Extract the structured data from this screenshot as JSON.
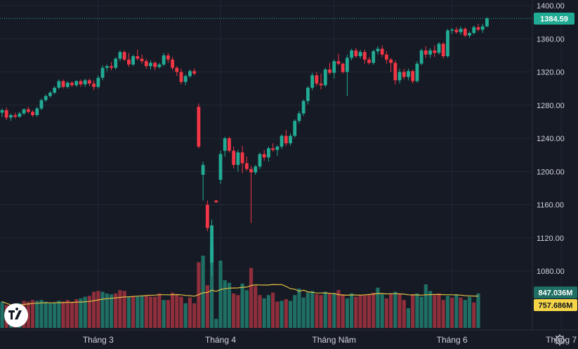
{
  "chart_data": {
    "type": "candlestick",
    "title": "",
    "xlabel": "",
    "ylabel": "",
    "ylim": [
      1050,
      1410
    ],
    "yticks": [
      "1400.00",
      "1360.00",
      "1320.00",
      "1280.00",
      "1240.00",
      "1200.00",
      "1160.00",
      "1120.00",
      "1080.00"
    ],
    "xticks": [
      {
        "label": "Tháng 3",
        "index": 22
      },
      {
        "label": "Tháng 4",
        "index": 50
      },
      {
        "label": "Tháng Năm",
        "index": 76
      },
      {
        "label": "Tháng 6",
        "index": 103
      },
      {
        "label": "Tháng 7",
        "index": 128
      }
    ],
    "last_price": "1384.59",
    "volume_tag": "847.036M",
    "volume_ma_tag": "757.686M",
    "colors": {
      "up": "#22ab94",
      "down": "#f23645",
      "vol_up": "#1f6f64",
      "vol_down": "#8e2f3b",
      "ma": "#e3c043",
      "price_line": "#22ab94"
    },
    "candles": [
      [
        1271,
        1276,
        1266,
        1274
      ],
      [
        1274,
        1277,
        1262,
        1265
      ],
      [
        1265,
        1270,
        1261,
        1268
      ],
      [
        1268,
        1271,
        1264,
        1266
      ],
      [
        1266,
        1272,
        1265,
        1270
      ],
      [
        1270,
        1276,
        1268,
        1275
      ],
      [
        1275,
        1278,
        1270,
        1272
      ],
      [
        1272,
        1274,
        1266,
        1268
      ],
      [
        1268,
        1278,
        1266,
        1276
      ],
      [
        1276,
        1288,
        1274,
        1286
      ],
      [
        1286,
        1293,
        1284,
        1291
      ],
      [
        1291,
        1297,
        1289,
        1295
      ],
      [
        1295,
        1303,
        1293,
        1301
      ],
      [
        1301,
        1311,
        1299,
        1309
      ],
      [
        1309,
        1311,
        1300,
        1302
      ],
      [
        1302,
        1309,
        1300,
        1307
      ],
      [
        1307,
        1309,
        1302,
        1304
      ],
      [
        1304,
        1310,
        1302,
        1309
      ],
      [
        1309,
        1311,
        1302,
        1305
      ],
      [
        1305,
        1312,
        1302,
        1310
      ],
      [
        1310,
        1312,
        1303,
        1306
      ],
      [
        1306,
        1310,
        1298,
        1302
      ],
      [
        1302,
        1316,
        1300,
        1313
      ],
      [
        1313,
        1328,
        1310,
        1325
      ],
      [
        1325,
        1329,
        1321,
        1327
      ],
      [
        1327,
        1332,
        1322,
        1325
      ],
      [
        1325,
        1338,
        1323,
        1336
      ],
      [
        1336,
        1346,
        1333,
        1344
      ],
      [
        1344,
        1346,
        1333,
        1335
      ],
      [
        1335,
        1343,
        1326,
        1329
      ],
      [
        1329,
        1341,
        1327,
        1339
      ],
      [
        1339,
        1347,
        1334,
        1336
      ],
      [
        1336,
        1341,
        1330,
        1333
      ],
      [
        1333,
        1336,
        1324,
        1327
      ],
      [
        1327,
        1334,
        1323,
        1331
      ],
      [
        1331,
        1333,
        1322,
        1326
      ],
      [
        1326,
        1331,
        1324,
        1329
      ],
      [
        1329,
        1343,
        1327,
        1340
      ],
      [
        1340,
        1343,
        1331,
        1335
      ],
      [
        1335,
        1338,
        1322,
        1325
      ],
      [
        1325,
        1327,
        1315,
        1320
      ],
      [
        1320,
        1324,
        1305,
        1308
      ],
      [
        1308,
        1317,
        1304,
        1315
      ],
      [
        1315,
        1323,
        1313,
        1321
      ],
      [
        1321,
        1324,
        1316,
        1318
      ],
      [
        1278,
        1282,
        1228,
        1230
      ],
      [
        1196,
        1212,
        1165,
        1208
      ],
      [
        1160,
        1165,
        1128,
        1132
      ],
      [
        1090,
        1142,
        1074,
        1135
      ],
      [
        1165,
        1166,
        1162,
        1163
      ],
      [
        1190,
        1225,
        1185,
        1221
      ],
      [
        1225,
        1242,
        1218,
        1240
      ],
      [
        1240,
        1242,
        1223,
        1225
      ],
      [
        1225,
        1230,
        1204,
        1208
      ],
      [
        1208,
        1226,
        1200,
        1223
      ],
      [
        1223,
        1231,
        1198,
        1210
      ],
      [
        1210,
        1218,
        1201,
        1203
      ],
      [
        1203,
        1207,
        1138,
        1199
      ],
      [
        1199,
        1208,
        1196,
        1206
      ],
      [
        1206,
        1223,
        1203,
        1221
      ],
      [
        1221,
        1226,
        1213,
        1217
      ],
      [
        1217,
        1230,
        1212,
        1228
      ],
      [
        1228,
        1234,
        1224,
        1226
      ],
      [
        1226,
        1232,
        1219,
        1230
      ],
      [
        1230,
        1245,
        1227,
        1243
      ],
      [
        1243,
        1250,
        1231,
        1234
      ],
      [
        1234,
        1246,
        1231,
        1243
      ],
      [
        1243,
        1263,
        1241,
        1261
      ],
      [
        1261,
        1273,
        1258,
        1270
      ],
      [
        1270,
        1287,
        1267,
        1285
      ],
      [
        1285,
        1303,
        1281,
        1301
      ],
      [
        1301,
        1319,
        1298,
        1316
      ],
      [
        1316,
        1320,
        1303,
        1306
      ],
      [
        1306,
        1318,
        1299,
        1304
      ],
      [
        1304,
        1325,
        1302,
        1323
      ],
      [
        1323,
        1331,
        1317,
        1319
      ],
      [
        1319,
        1335,
        1312,
        1333
      ],
      [
        1333,
        1342,
        1328,
        1330
      ],
      [
        1330,
        1331,
        1318,
        1320
      ],
      [
        1320,
        1341,
        1291,
        1337
      ],
      [
        1337,
        1348,
        1334,
        1346
      ],
      [
        1346,
        1349,
        1337,
        1339
      ],
      [
        1339,
        1347,
        1336,
        1344
      ],
      [
        1344,
        1347,
        1330,
        1335
      ],
      [
        1335,
        1338,
        1329,
        1331
      ],
      [
        1331,
        1347,
        1329,
        1345
      ],
      [
        1345,
        1351,
        1341,
        1348
      ],
      [
        1348,
        1352,
        1338,
        1341
      ],
      [
        1341,
        1345,
        1330,
        1335
      ],
      [
        1335,
        1337,
        1320,
        1331
      ],
      [
        1331,
        1334,
        1305,
        1310
      ],
      [
        1310,
        1324,
        1306,
        1320
      ],
      [
        1320,
        1324,
        1311,
        1314
      ],
      [
        1314,
        1324,
        1310,
        1321
      ],
      [
        1321,
        1323,
        1306,
        1309
      ],
      [
        1309,
        1333,
        1307,
        1330
      ],
      [
        1330,
        1348,
        1328,
        1346
      ],
      [
        1346,
        1351,
        1337,
        1341
      ],
      [
        1341,
        1349,
        1337,
        1346
      ],
      [
        1346,
        1352,
        1338,
        1343
      ],
      [
        1343,
        1356,
        1341,
        1354
      ],
      [
        1354,
        1356,
        1336,
        1339
      ],
      [
        1339,
        1372,
        1337,
        1370
      ],
      [
        1370,
        1373,
        1366,
        1371
      ],
      [
        1371,
        1374,
        1366,
        1368
      ],
      [
        1368,
        1375,
        1365,
        1372
      ],
      [
        1372,
        1374,
        1362,
        1364
      ],
      [
        1364,
        1369,
        1361,
        1367
      ],
      [
        1367,
        1376,
        1365,
        1374
      ],
      [
        1374,
        1378,
        1369,
        1371
      ],
      [
        1371,
        1378,
        1367,
        1375
      ],
      [
        1375,
        1386,
        1374,
        1384.59
      ]
    ],
    "volumes": [
      [
        32,
        0
      ],
      [
        28,
        1
      ],
      [
        24,
        0
      ],
      [
        25,
        1
      ],
      [
        30,
        0
      ],
      [
        33,
        1
      ],
      [
        32,
        1
      ],
      [
        34,
        1
      ],
      [
        33,
        0
      ],
      [
        34,
        0
      ],
      [
        32,
        0
      ],
      [
        30,
        0
      ],
      [
        31,
        0
      ],
      [
        33,
        0
      ],
      [
        32,
        1
      ],
      [
        34,
        1
      ],
      [
        32,
        1
      ],
      [
        35,
        1
      ],
      [
        36,
        0
      ],
      [
        38,
        0
      ],
      [
        39,
        1
      ],
      [
        44,
        1
      ],
      [
        45,
        1
      ],
      [
        44,
        0
      ],
      [
        42,
        0
      ],
      [
        41,
        0
      ],
      [
        42,
        1
      ],
      [
        46,
        1
      ],
      [
        45,
        1
      ],
      [
        38,
        0
      ],
      [
        39,
        1
      ],
      [
        38,
        0
      ],
      [
        39,
        0
      ],
      [
        40,
        1
      ],
      [
        38,
        1
      ],
      [
        38,
        1
      ],
      [
        42,
        1
      ],
      [
        34,
        0
      ],
      [
        34,
        1
      ],
      [
        43,
        1
      ],
      [
        40,
        1
      ],
      [
        38,
        1
      ],
      [
        30,
        0
      ],
      [
        37,
        1
      ],
      [
        30,
        1
      ],
      [
        80,
        1
      ],
      [
        88,
        0
      ],
      [
        52,
        1
      ],
      [
        100,
        0
      ],
      [
        11,
        0
      ],
      [
        82,
        0
      ],
      [
        58,
        0
      ],
      [
        55,
        0
      ],
      [
        42,
        1
      ],
      [
        40,
        1
      ],
      [
        54,
        0
      ],
      [
        46,
        0
      ],
      [
        73,
        1
      ],
      [
        51,
        1
      ],
      [
        40,
        1
      ],
      [
        36,
        0
      ],
      [
        40,
        0
      ],
      [
        43,
        1
      ],
      [
        32,
        1
      ],
      [
        33,
        0
      ],
      [
        35,
        1
      ],
      [
        33,
        0
      ],
      [
        40,
        0
      ],
      [
        48,
        0
      ],
      [
        37,
        0
      ],
      [
        43,
        0
      ],
      [
        45,
        0
      ],
      [
        41,
        1
      ],
      [
        40,
        1
      ],
      [
        44,
        0
      ],
      [
        42,
        1
      ],
      [
        42,
        0
      ],
      [
        46,
        1
      ],
      [
        41,
        1
      ],
      [
        36,
        0
      ],
      [
        42,
        0
      ],
      [
        38,
        1
      ],
      [
        40,
        1
      ],
      [
        40,
        1
      ],
      [
        41,
        1
      ],
      [
        43,
        1
      ],
      [
        49,
        0
      ],
      [
        41,
        0
      ],
      [
        36,
        1
      ],
      [
        42,
        1
      ],
      [
        44,
        0
      ],
      [
        41,
        1
      ],
      [
        34,
        1
      ],
      [
        24,
        0
      ],
      [
        41,
        1
      ],
      [
        42,
        0
      ],
      [
        38,
        0
      ],
      [
        53,
        0
      ],
      [
        45,
        0
      ],
      [
        40,
        1
      ],
      [
        42,
        1
      ],
      [
        34,
        1
      ],
      [
        39,
        0
      ],
      [
        37,
        1
      ],
      [
        40,
        0
      ],
      [
        37,
        1
      ],
      [
        34,
        0
      ],
      [
        38,
        0
      ],
      [
        31,
        1
      ],
      [
        42,
        0
      ]
    ]
  }
}
